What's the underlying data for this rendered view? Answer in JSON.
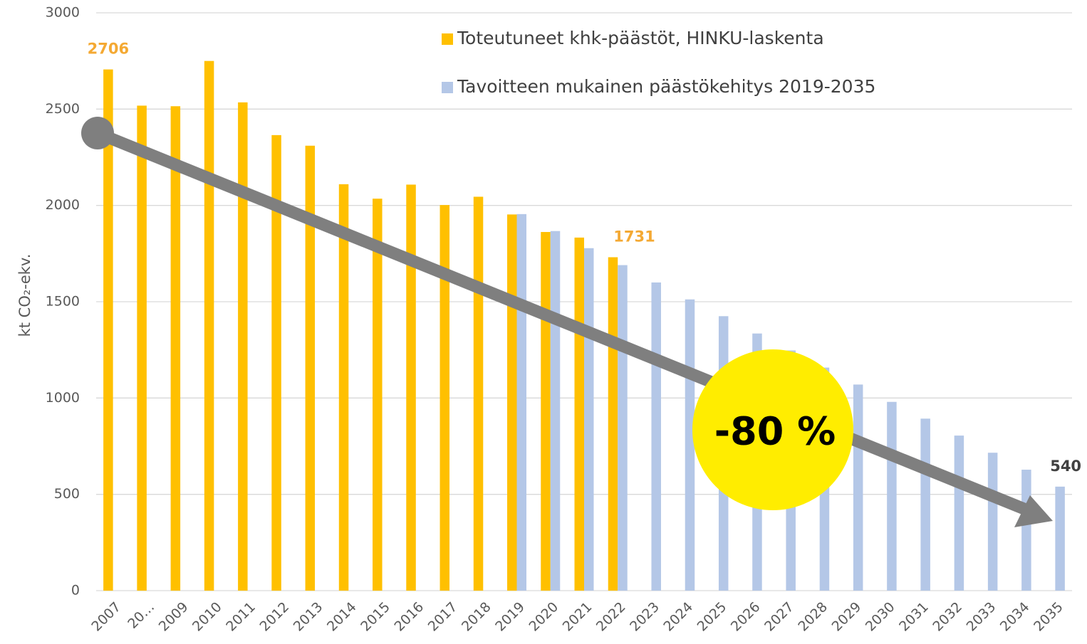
{
  "chart_data": {
    "type": "bar",
    "y_label": "kt CO₂-ekv.",
    "categories": [
      "2007",
      "20…",
      "2009",
      "2010",
      "2011",
      "2012",
      "2013",
      "2014",
      "2015",
      "2016",
      "2017",
      "2018",
      "2019",
      "2020",
      "2021",
      "2022",
      "2023",
      "2024",
      "2025",
      "2026",
      "2027",
      "2028",
      "2029",
      "2030",
      "2031",
      "2032",
      "2033",
      "2034",
      "2035"
    ],
    "series": [
      {
        "name": "Toteutuneet khk-päästöt, HINKU-laskenta",
        "color": "#ffc000",
        "values": [
          2706,
          2518,
          2515,
          2750,
          2535,
          2365,
          2310,
          2110,
          2035,
          2108,
          2002,
          2045,
          1953,
          1862,
          1833,
          1731,
          null,
          null,
          null,
          null,
          null,
          null,
          null,
          null,
          null,
          null,
          null,
          null,
          null
        ]
      },
      {
        "name": "Tavoitteen mukainen päästökehitys 2019-2035",
        "color": "#b4c7e7",
        "values": [
          null,
          null,
          null,
          null,
          null,
          null,
          null,
          null,
          null,
          null,
          null,
          null,
          1955,
          1867,
          1778,
          1690,
          1600,
          1512,
          1425,
          1335,
          1247,
          1158,
          1070,
          980,
          893,
          805,
          716,
          628,
          540
        ]
      }
    ],
    "ylim": [
      0,
      3000
    ],
    "yticks": [
      0,
      500,
      1000,
      1500,
      2000,
      2500,
      3000
    ],
    "grid": true,
    "annotation": "-80 %"
  }
}
